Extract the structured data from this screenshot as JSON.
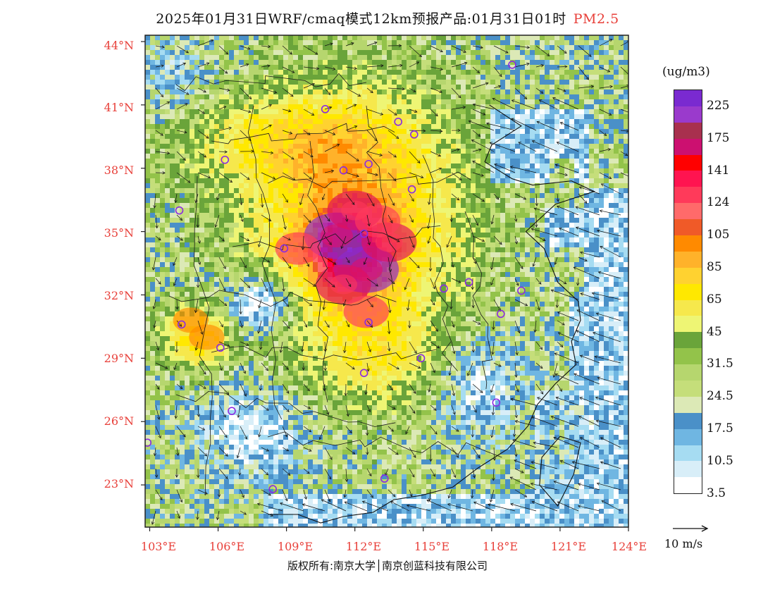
{
  "title": "2025年01月31日WRF/cmaq模式12km预报产品:01月31日01时",
  "pollutant": "PM2.5",
  "colors": {
    "accent": "#e8403a",
    "palette": [
      "#ffffff",
      "#d8eef8",
      "#a6dcf2",
      "#6fb6e2",
      "#4a90c8",
      "#dce9b6",
      "#b6d66e",
      "#c5de7a",
      "#93c34a",
      "#6aa43a",
      "#eef574",
      "#f6e84c",
      "#ffe800",
      "#ffd230",
      "#ffb22a",
      "#ff8a00",
      "#f05a28",
      "#ff6a6a",
      "#ff3a5a",
      "#ff0050",
      "#ff0000",
      "#cc1070",
      "#a8304e",
      "#9a3acc",
      "#7a2ad0"
    ]
  },
  "lat_labels": [
    "44°N",
    "41°N",
    "38°N",
    "35°N",
    "32°N",
    "29°N",
    "26°N",
    "23°N"
  ],
  "lon_labels": [
    "103°E",
    "106°E",
    "109°E",
    "112°E",
    "115°E",
    "118°E",
    "121°E",
    "124°E"
  ],
  "colorbar": {
    "unit": "(ug/m3)",
    "ticks": [
      "225",
      "175",
      "141",
      "124",
      "105",
      "85",
      "65",
      "45",
      "31.5",
      "24.5",
      "17.5",
      "10.5",
      "3.5"
    ]
  },
  "vector_label": "10 m/s",
  "copyright": "版权所有:南京大学│南京创蓝科技有限公司",
  "map_data": {
    "extent": {
      "lon": [
        102.8,
        124
      ],
      "lat": [
        21,
        44.3
      ]
    },
    "hotspots": [
      {
        "lon": 111.2,
        "lat": 34.8,
        "level": 5
      },
      {
        "lon": 112.5,
        "lat": 33.2,
        "level": 5
      },
      {
        "lon": 111.5,
        "lat": 32.5,
        "level": 4
      },
      {
        "lon": 113.5,
        "lat": 34.5,
        "level": 4
      },
      {
        "lon": 112.0,
        "lat": 36.0,
        "level": 4
      },
      {
        "lon": 109.5,
        "lat": 34.2,
        "level": 3
      },
      {
        "lon": 113.0,
        "lat": 35.5,
        "level": 3
      },
      {
        "lon": 112.5,
        "lat": 31.2,
        "level": 3
      },
      {
        "lon": 105.5,
        "lat": 30.0,
        "level": 2
      },
      {
        "lon": 104.8,
        "lat": 30.8,
        "level": 2
      }
    ],
    "cities": [
      {
        "lon": 110.7,
        "lat": 40.8
      },
      {
        "lon": 113.9,
        "lat": 40.2
      },
      {
        "lon": 114.6,
        "lat": 39.6
      },
      {
        "lon": 118.9,
        "lat": 42.9
      },
      {
        "lon": 106.3,
        "lat": 38.4
      },
      {
        "lon": 111.5,
        "lat": 37.9
      },
      {
        "lon": 112.6,
        "lat": 38.2
      },
      {
        "lon": 114.5,
        "lat": 37.0
      },
      {
        "lon": 104.3,
        "lat": 36.0
      },
      {
        "lon": 112.4,
        "lat": 34.9
      },
      {
        "lon": 108.9,
        "lat": 34.2
      },
      {
        "lon": 117.0,
        "lat": 32.6
      },
      {
        "lon": 115.9,
        "lat": 32.3
      },
      {
        "lon": 119.3,
        "lat": 32.2
      },
      {
        "lon": 118.4,
        "lat": 31.1
      },
      {
        "lon": 104.4,
        "lat": 30.6
      },
      {
        "lon": 112.6,
        "lat": 30.7
      },
      {
        "lon": 106.1,
        "lat": 29.5
      },
      {
        "lon": 114.9,
        "lat": 29.0
      },
      {
        "lon": 112.4,
        "lat": 28.3
      },
      {
        "lon": 118.2,
        "lat": 26.9
      },
      {
        "lon": 106.6,
        "lat": 26.5
      },
      {
        "lon": 102.9,
        "lat": 25.0
      },
      {
        "lon": 108.4,
        "lat": 22.8
      },
      {
        "lon": 113.3,
        "lat": 23.3
      }
    ]
  }
}
